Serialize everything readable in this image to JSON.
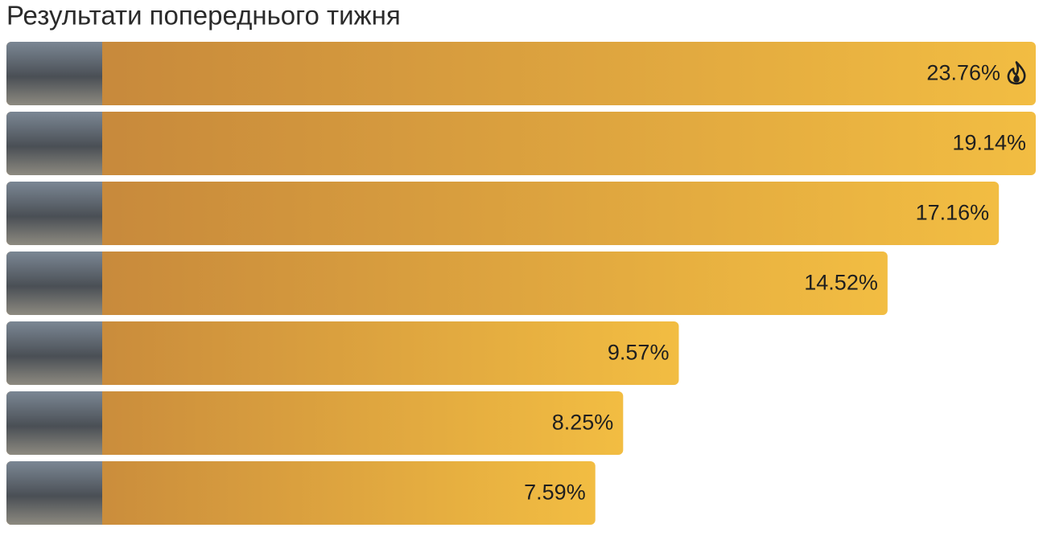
{
  "chart_data": {
    "type": "bar",
    "orientation": "horizontal",
    "title": "Результати попереднього тижня",
    "values": [
      23.76,
      19.14,
      17.16,
      14.52,
      9.57,
      8.25,
      7.59
    ],
    "value_labels": [
      "23.76%",
      "19.14%",
      "17.16%",
      "14.52%",
      "9.57%",
      "8.25%",
      "7.59%"
    ],
    "gradient": [
      "#c3843b",
      "#f2bd42"
    ]
  }
}
